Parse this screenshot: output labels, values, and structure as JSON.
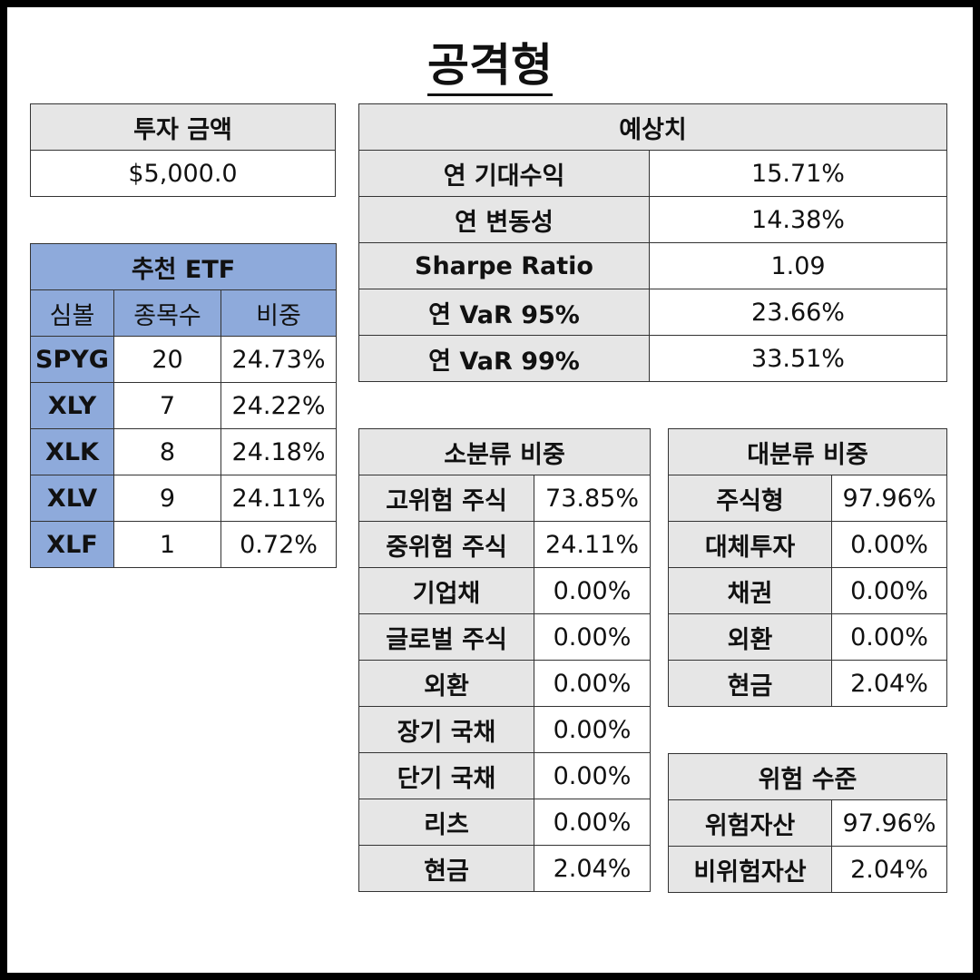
{
  "title": "공격형",
  "investment": {
    "header": "투자 금액",
    "value": "$5,000.0"
  },
  "etf": {
    "header": "추천 ETF",
    "columns": [
      "심볼",
      "종목수",
      "비중"
    ],
    "rows": [
      {
        "symbol": "SPYG",
        "count": "20",
        "weight": "24.73%"
      },
      {
        "symbol": "XLY",
        "count": "7",
        "weight": "24.22%"
      },
      {
        "symbol": "XLK",
        "count": "8",
        "weight": "24.18%"
      },
      {
        "symbol": "XLV",
        "count": "9",
        "weight": "24.11%"
      },
      {
        "symbol": "XLF",
        "count": "1",
        "weight": "0.72%"
      }
    ]
  },
  "forecast": {
    "header": "예상치",
    "rows": [
      {
        "label": "연 기대수익",
        "value": "15.71%"
      },
      {
        "label": "연 변동성",
        "value": "14.38%"
      },
      {
        "label": "Sharpe Ratio",
        "value": "1.09"
      },
      {
        "label": "연 VaR 95%",
        "value": "23.66%"
      },
      {
        "label": "연 VaR 99%",
        "value": "33.51%"
      }
    ]
  },
  "sub_category": {
    "header": "소분류 비중",
    "rows": [
      {
        "label": "고위험 주식",
        "value": "73.85%"
      },
      {
        "label": "중위험 주식",
        "value": "24.11%"
      },
      {
        "label": "기업채",
        "value": "0.00%"
      },
      {
        "label": "글로벌 주식",
        "value": "0.00%"
      },
      {
        "label": "외환",
        "value": "0.00%"
      },
      {
        "label": "장기 국채",
        "value": "0.00%"
      },
      {
        "label": "단기 국채",
        "value": "0.00%"
      },
      {
        "label": "리츠",
        "value": "0.00%"
      },
      {
        "label": "현금",
        "value": "2.04%"
      }
    ]
  },
  "main_category": {
    "header": "대분류 비중",
    "rows": [
      {
        "label": "주식형",
        "value": "97.96%"
      },
      {
        "label": "대체투자",
        "value": "0.00%"
      },
      {
        "label": "채권",
        "value": "0.00%"
      },
      {
        "label": "외환",
        "value": "0.00%"
      },
      {
        "label": "현금",
        "value": "2.04%"
      }
    ]
  },
  "risk_level": {
    "header": "위험 수준",
    "rows": [
      {
        "label": "위험자산",
        "value": "97.96%"
      },
      {
        "label": "비위험자산",
        "value": "2.04%"
      }
    ]
  }
}
